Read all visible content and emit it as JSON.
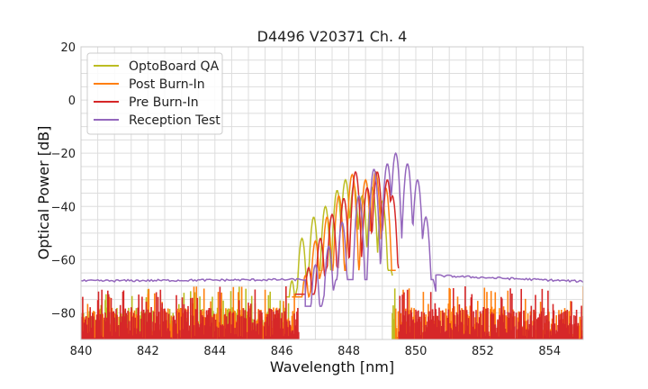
{
  "chart_data": {
    "type": "line",
    "title": "D4496 V20371 Ch. 4",
    "xlabel": "Wavelength [nm]",
    "ylabel": "Optical Power [dB]",
    "xlim": [
      840,
      855
    ],
    "ylim": [
      -90,
      20
    ],
    "xticks": [
      840,
      842,
      844,
      846,
      848,
      850,
      852,
      854
    ],
    "yticks": [
      20,
      0,
      -20,
      -40,
      -60,
      -80
    ],
    "xtick_labels": [
      "840",
      "842",
      "844",
      "846",
      "848",
      "850",
      "852",
      "854"
    ],
    "ytick_labels": [
      "20",
      "0",
      "−20",
      "−40",
      "−60",
      "−80"
    ],
    "grid": true,
    "legend_position": "top-left",
    "series": [
      {
        "name": "OptoBoard QA",
        "color": "#bcbd22",
        "noise_ranges": [
          [
            840,
            846.2
          ],
          [
            849.3,
            849.4
          ]
        ],
        "peaks": [
          [
            846.3,
            -68
          ],
          [
            846.6,
            -52
          ],
          [
            846.95,
            -44
          ],
          [
            847.3,
            -40
          ],
          [
            847.65,
            -34
          ],
          [
            847.9,
            -30
          ],
          [
            848.15,
            -32
          ],
          [
            848.4,
            -36
          ],
          [
            848.7,
            -33
          ],
          [
            849.0,
            -38
          ]
        ],
        "baseline": -64,
        "rise_start": 846.1,
        "fall_end": 849.3,
        "post": [
          849.3,
          -85
        ]
      },
      {
        "name": "Post Burn-In",
        "color": "#ff7f0e",
        "noise_ranges": [
          [
            840,
            846.4
          ],
          [
            849.4,
            855
          ]
        ],
        "peaks": [
          [
            846.7,
            -66
          ],
          [
            847.0,
            -53
          ],
          [
            847.35,
            -44
          ],
          [
            847.7,
            -36
          ],
          [
            848.1,
            -28
          ],
          [
            848.5,
            -30
          ],
          [
            848.8,
            -27
          ],
          [
            849.1,
            -33
          ]
        ],
        "baseline": -64,
        "rise_start": 846.3,
        "fall_end": 849.4,
        "post": null
      },
      {
        "name": "Pre Burn-In",
        "color": "#d62728",
        "noise_ranges": [
          [
            840,
            846.5
          ],
          [
            849.5,
            855
          ]
        ],
        "peaks": [
          [
            846.8,
            -63
          ],
          [
            847.15,
            -52
          ],
          [
            847.5,
            -43
          ],
          [
            847.85,
            -37
          ],
          [
            848.2,
            -27
          ],
          [
            848.55,
            -33
          ],
          [
            848.85,
            -27
          ],
          [
            849.15,
            -30
          ],
          [
            849.3,
            -36
          ]
        ],
        "baseline": -63,
        "rise_start": 846.4,
        "fall_end": 849.5,
        "post": null
      },
      {
        "name": "Reception Test",
        "color": "#9467bd",
        "noise_ranges": [],
        "peaks": [
          [
            847.0,
            -62
          ],
          [
            847.4,
            -55
          ],
          [
            847.8,
            -46
          ],
          [
            848.3,
            -36
          ],
          [
            848.75,
            -26
          ],
          [
            849.15,
            -24
          ],
          [
            849.4,
            -20
          ],
          [
            849.75,
            -24
          ],
          [
            850.05,
            -30
          ],
          [
            850.3,
            -44
          ]
        ],
        "baseline": -67.5,
        "rise_start": 846.7,
        "fall_end": 850.6,
        "flat": [
          [
            840,
            -68
          ],
          [
            845.5,
            -67.5
          ],
          [
            846.7,
            -67
          ],
          [
            850.6,
            -65
          ],
          [
            851.5,
            -67
          ],
          [
            855,
            -68.5
          ]
        ]
      }
    ]
  }
}
